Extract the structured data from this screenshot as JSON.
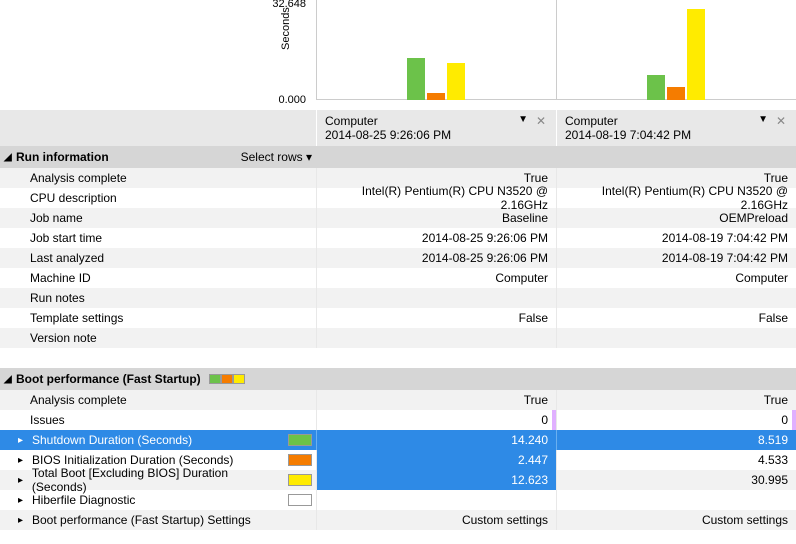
{
  "chart": {
    "ylabel": "Seconds",
    "ymax_label": "32.648",
    "ymin_label": "0.000",
    "ymax": 32.648,
    "colors": {
      "green": "#6cc24a",
      "orange": "#f57c00",
      "yellow": "#ffeb00"
    },
    "columns": [
      {
        "bars": [
          14.24,
          2.447,
          12.623
        ]
      },
      {
        "bars": [
          8.519,
          4.533,
          30.995
        ]
      }
    ]
  },
  "computers": [
    {
      "name": "Computer",
      "timestamp": "2014-08-25 9:26:06 PM"
    },
    {
      "name": "Computer",
      "timestamp": "2014-08-19 7:04:42 PM"
    }
  ],
  "sections": {
    "run_info": {
      "title": "Run information",
      "select_rows": "Select rows",
      "rows": [
        {
          "label": "Analysis complete",
          "vals": [
            "True",
            "True"
          ]
        },
        {
          "label": "CPU description",
          "vals": [
            "Intel(R) Pentium(R) CPU  N3520  @ 2.16GHz",
            "Intel(R) Pentium(R) CPU  N3520  @ 2.16GHz"
          ]
        },
        {
          "label": "Job name",
          "vals": [
            "Baseline",
            "OEMPreload"
          ]
        },
        {
          "label": "Job start time",
          "vals": [
            "2014-08-25 9:26:06 PM",
            "2014-08-19 7:04:42 PM"
          ]
        },
        {
          "label": "Last analyzed",
          "vals": [
            "2014-08-25 9:26:06 PM",
            "2014-08-19 7:04:42 PM"
          ]
        },
        {
          "label": "Machine ID",
          "vals": [
            "Computer",
            "Computer"
          ]
        },
        {
          "label": "Run notes",
          "vals": [
            "",
            ""
          ]
        },
        {
          "label": "Template settings",
          "vals": [
            "False",
            "False"
          ]
        },
        {
          "label": "Version note",
          "vals": [
            "",
            ""
          ]
        }
      ]
    },
    "boot_perf": {
      "title": "Boot performance (Fast Startup)",
      "rows": [
        {
          "label": "Analysis complete",
          "vals": [
            "True",
            "True"
          ]
        },
        {
          "label": "Issues",
          "vals": [
            "0",
            "0"
          ],
          "violet": true
        },
        {
          "label": "Shutdown Duration (Seconds)",
          "vals": [
            "14.240",
            "8.519"
          ],
          "swatch": "#6cc24a",
          "exp": true,
          "sel": true,
          "hl": [
            false,
            true
          ]
        },
        {
          "label": "BIOS Initialization Duration (Seconds)",
          "vals": [
            "2.447",
            "4.533"
          ],
          "swatch": "#f57c00",
          "exp": true,
          "hl": [
            true,
            false
          ]
        },
        {
          "label": "Total Boot [Excluding BIOS] Duration (Seconds)",
          "vals": [
            "12.623",
            "30.995"
          ],
          "swatch": "#ffeb00",
          "exp": true,
          "hl": [
            true,
            false
          ]
        },
        {
          "label": "Hiberfile Diagnostic",
          "vals": [
            "",
            ""
          ],
          "swatch": "#ffffff",
          "exp": true
        },
        {
          "label": "Boot performance (Fast Startup) Settings",
          "vals": [
            "Custom settings",
            "Custom settings"
          ],
          "exp": true
        }
      ]
    }
  }
}
